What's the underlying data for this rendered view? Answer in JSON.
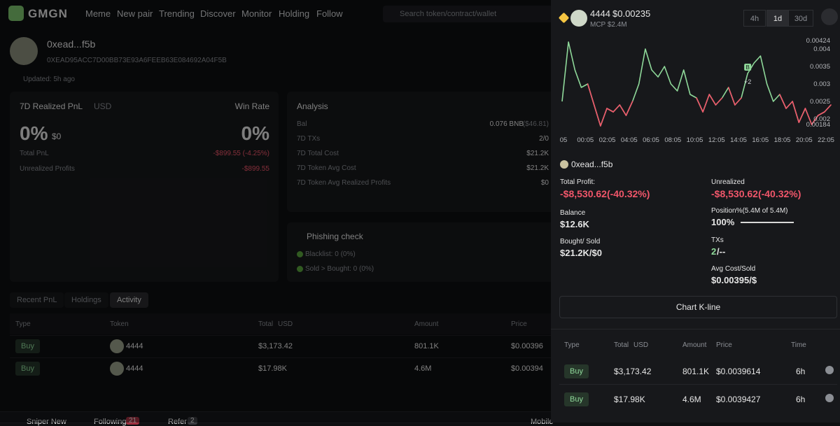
{
  "nav": {
    "logo": "GMGN",
    "links": [
      "Meme",
      "New pair",
      "Trending",
      "Discover",
      "Monitor",
      "Holding",
      "Follow"
    ],
    "search": "Search token/contract/wallet"
  },
  "profile": {
    "name": "0xead...f5b",
    "address": "0XEAD95ACC7D00BB73E93A6FEEB63E084692A04F5B",
    "updated": "Updated: 5h ago"
  },
  "pnl": {
    "title": "7D Realized PnL",
    "currency": "USD",
    "win_rate_label": "Win Rate",
    "pct": "0%",
    "usd": "$0",
    "win_rate": "0%",
    "rows": [
      {
        "label": "Total PnL",
        "value": "-$899.55 (-4.25%)"
      },
      {
        "label": "Unrealized Profits",
        "value": "-$899.55"
      }
    ]
  },
  "analysis": {
    "title": "Analysis",
    "rows": [
      {
        "label": "Bal",
        "value": "0.076 BNB",
        "extra": "($46.81)"
      },
      {
        "label": "7D TXs",
        "value": "2/0"
      },
      {
        "label": "7D Total Cost",
        "value": "$21.2K"
      },
      {
        "label": "7D Token Avg Cost",
        "value": "$21.2K"
      },
      {
        "label": "7D Token Avg Realized Profits",
        "value": "$0"
      }
    ]
  },
  "phishing": {
    "title": "Phishing check",
    "rows": [
      "Blacklist: 0 (0%)",
      "Sold > Bought: 0 (0%)"
    ]
  },
  "tabs": [
    "Recent PnL",
    "Holdings",
    "Activity"
  ],
  "activity": {
    "headers": {
      "type": "Type",
      "token": "Token",
      "total": "Total",
      "currency": "USD",
      "amount": "Amount",
      "price": "Price"
    },
    "rows": [
      {
        "type": "Buy",
        "token": "4444",
        "total": "$3,173.42",
        "amount": "801.1K",
        "price": "$0.00396"
      },
      {
        "type": "Buy",
        "token": "4444",
        "total": "$17.98K",
        "amount": "4.6M",
        "price": "$0.00394"
      }
    ]
  },
  "footer": {
    "items": [
      {
        "label": "Sniper New"
      },
      {
        "label": "Following",
        "badge": "21"
      },
      {
        "label": "Refer",
        "badge": "2"
      }
    ],
    "mobile": "Mobile"
  },
  "panel": {
    "token": "4444",
    "price": "$0.00235",
    "mcp": "MCP $2.4M",
    "ranges": [
      "4h",
      "1d",
      "30d"
    ],
    "chart": {
      "type": "line",
      "color_up": "#8fd99a",
      "color_down": "#f0566a",
      "annotation": "+2",
      "marker": "B",
      "xticks": [
        "05",
        "00:05",
        "02:05",
        "04:05",
        "06:05",
        "08:05",
        "10:05",
        "12:05",
        "14:05",
        "16:05",
        "18:05",
        "20:05",
        "22:05"
      ],
      "values": [
        0.0025,
        0.0042,
        0.0034,
        0.0029,
        0.003,
        0.0024,
        0.0018,
        0.0023,
        0.0022,
        0.0024,
        0.0021,
        0.0025,
        0.003,
        0.004,
        0.0034,
        0.0032,
        0.0035,
        0.003,
        0.0028,
        0.0034,
        0.0027,
        0.0026,
        0.0022,
        0.0027,
        0.0024,
        0.0026,
        0.0029,
        0.0024,
        0.0026,
        0.0033,
        0.0036,
        0.0038,
        0.003,
        0.0025,
        0.0027,
        0.0023,
        0.0025,
        0.0019,
        0.0023,
        0.00184,
        0.0021,
        0.0022,
        0.0024
      ],
      "ylim": [
        0.0017,
        0.0044
      ],
      "yticks": [
        0.00424,
        0.004,
        0.0035,
        0.003,
        0.0025,
        0.002,
        0.00184
      ]
    },
    "wallet": "0xead...f5b",
    "stats": {
      "total_profit_label": "Total Profit:",
      "total_profit": "-$8,530.62(-40.32%)",
      "balance_label": "Balance",
      "balance": "$12.6K",
      "bought_sold_label": "Bought/ Sold",
      "bought_sold": "$21.2K/$0",
      "unrealized_label": "Unrealized",
      "unrealized": "-$8,530.62(-40.32%)",
      "position_label": "Position%(5.4M of 5.4M)",
      "position": "100%",
      "txs_label": "TXs",
      "txs_buy": "2",
      "txs_sell": "/--",
      "avg_label": "Avg Cost/Sold",
      "avg": "$0.00395/$"
    },
    "button": "Chart K-line",
    "table": {
      "headers": {
        "type": "Type",
        "total": "Total",
        "currency": "USD",
        "amount": "Amount",
        "price": "Price",
        "time": "Time"
      },
      "rows": [
        {
          "type": "Buy",
          "total": "$3,173.42",
          "amount": "801.1K",
          "price": "$0.0039614",
          "time": "6h"
        },
        {
          "type": "Buy",
          "total": "$17.98K",
          "amount": "4.6M",
          "price": "$0.0039427",
          "time": "6h"
        }
      ]
    }
  }
}
